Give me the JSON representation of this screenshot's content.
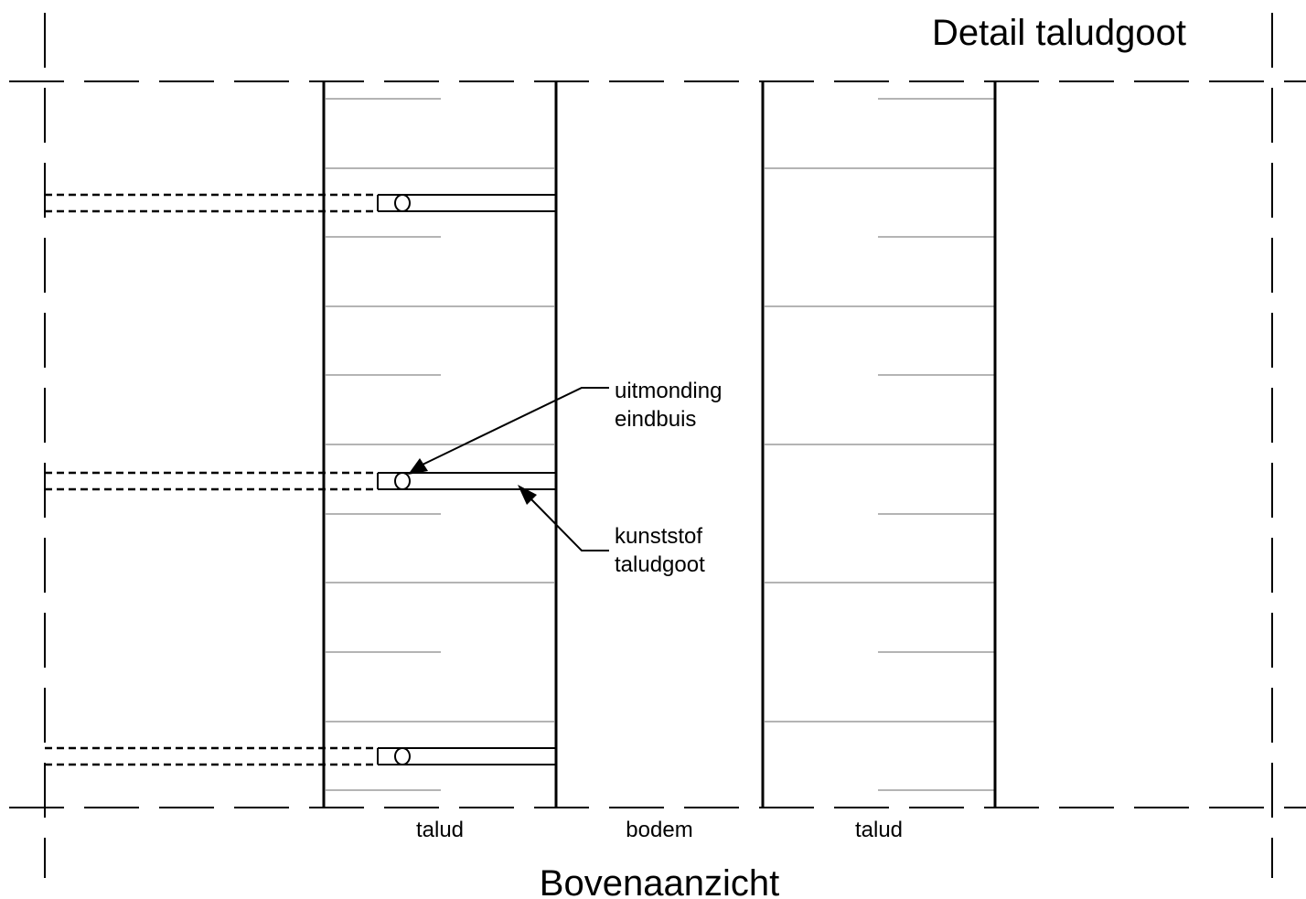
{
  "title": "Detail taludgoot",
  "subtitle": "Bovenaanzicht",
  "zones": {
    "left_slope": "talud",
    "bottom": "bodem",
    "right_slope": "talud"
  },
  "annotations": {
    "outlet_line1": "uitmonding",
    "outlet_line2": "eindbuis",
    "gutter_line1": "kunststof",
    "gutter_line2": "taludgoot"
  },
  "gutter_count": 3,
  "colors": {
    "line": "#000000",
    "slope_hatch": "#b4b4b4",
    "background": "#ffffff"
  }
}
